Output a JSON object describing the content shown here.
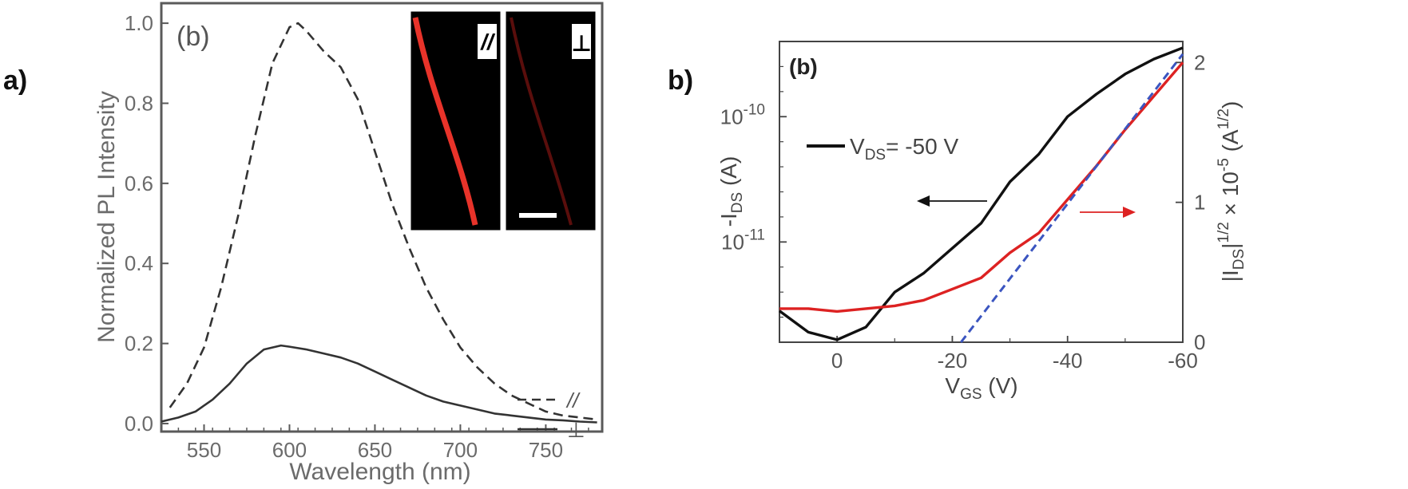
{
  "panel_labels": {
    "a": "a)",
    "b": "b)"
  },
  "chart_data": [
    {
      "type": "line",
      "panel_tag": "(b)",
      "title": "",
      "xlabel": "Wavelength (nm)",
      "ylabel": "Normalized PL Intensity",
      "xlim": [
        525,
        783
      ],
      "ylim": [
        -0.02,
        1.05
      ],
      "xticks": [
        "550",
        "600",
        "650",
        "700",
        "750"
      ],
      "yticks": [
        "0.0",
        "0.2",
        "0.4",
        "0.6",
        "0.8",
        "1.0"
      ],
      "legend": {
        "placement": "bottom-right",
        "entries": [
          "//",
          "⊥"
        ]
      },
      "inset": {
        "labels": [
          "//",
          "⊥"
        ]
      },
      "series": [
        {
          "name": "//",
          "style": "dashed",
          "color": "#333333",
          "x": [
            530,
            540,
            550,
            560,
            570,
            580,
            590,
            600,
            605,
            610,
            620,
            630,
            640,
            650,
            660,
            670,
            680,
            690,
            700,
            710,
            720,
            730,
            740,
            750,
            760,
            770,
            780
          ],
          "y": [
            0.04,
            0.1,
            0.19,
            0.34,
            0.52,
            0.72,
            0.9,
            0.99,
            1.0,
            0.98,
            0.93,
            0.89,
            0.81,
            0.68,
            0.55,
            0.44,
            0.34,
            0.26,
            0.19,
            0.14,
            0.1,
            0.07,
            0.05,
            0.03,
            0.02,
            0.015,
            0.01
          ]
        },
        {
          "name": "⊥",
          "style": "solid",
          "color": "#333333",
          "x": [
            525,
            535,
            545,
            555,
            565,
            575,
            585,
            595,
            600,
            610,
            620,
            630,
            640,
            650,
            660,
            670,
            680,
            690,
            700,
            710,
            720,
            730,
            740,
            750,
            760,
            770,
            780
          ],
          "y": [
            0.005,
            0.015,
            0.03,
            0.06,
            0.1,
            0.15,
            0.185,
            0.195,
            0.192,
            0.185,
            0.175,
            0.165,
            0.15,
            0.13,
            0.11,
            0.09,
            0.07,
            0.055,
            0.045,
            0.035,
            0.025,
            0.02,
            0.015,
            0.01,
            0.008,
            0.005,
            0.003
          ]
        }
      ]
    },
    {
      "type": "line",
      "panel_tag": "(b)",
      "title": "",
      "xlabel_main": "V",
      "xlabel_sub": "GS",
      "xlabel_unit": " (V)",
      "ylabel_left_main": "-I",
      "ylabel_left_sub": "DS",
      "ylabel_left_unit": " (A)",
      "ylabel_right_a": "|I",
      "ylabel_right_sub": "DS",
      "ylabel_right_b": "|",
      "ylabel_right_sup1": "1/2",
      "ylabel_right_c": " × 10",
      "ylabel_right_sup2": "-5",
      "ylabel_right_d": " (A",
      "ylabel_right_sup3": "1/2",
      "ylabel_right_e": ")",
      "xlim": [
        10,
        -60
      ],
      "ylim_left_log10": [
        -11.8,
        -9.4
      ],
      "ylim_right": [
        0,
        2.15
      ],
      "xticks": [
        "0",
        "-20",
        "-40",
        "-60"
      ],
      "yticks_left_mantissa": [
        "10",
        "10"
      ],
      "yticks_left_exp": [
        "-10",
        "-11"
      ],
      "yticks_right": [
        "0",
        "1",
        "2"
      ],
      "legend": {
        "placement": "top-left",
        "main": "V",
        "sub": "DS",
        "rest": "= -50 V"
      },
      "series": [
        {
          "name": "-I_DS (left, log)",
          "color": "#111111",
          "x": [
            10,
            5,
            0,
            -5,
            -10,
            -15,
            -20,
            -25,
            -30,
            -35,
            -40,
            -45,
            -50,
            -55,
            -60
          ],
          "log10_y": [
            -11.55,
            -11.72,
            -11.78,
            -11.68,
            -11.4,
            -11.25,
            -11.05,
            -10.85,
            -10.52,
            -10.3,
            -10.0,
            -9.82,
            -9.66,
            -9.54,
            -9.45
          ]
        },
        {
          "name": "|I_DS|^1/2 (right)",
          "color": "#dd2222",
          "x": [
            10,
            5,
            0,
            -5,
            -10,
            -15,
            -20,
            -25,
            -30,
            -35,
            -40,
            -45,
            -50,
            -55,
            -60
          ],
          "y": [
            0.24,
            0.24,
            0.22,
            0.24,
            0.26,
            0.3,
            0.38,
            0.46,
            0.64,
            0.78,
            1.02,
            1.26,
            1.52,
            1.76,
            2.0
          ]
        },
        {
          "name": "linear fit",
          "color": "#3b55c0",
          "style": "dashed",
          "x": [
            -21.5,
            -60
          ],
          "y": [
            0,
            2.06
          ]
        }
      ]
    }
  ]
}
